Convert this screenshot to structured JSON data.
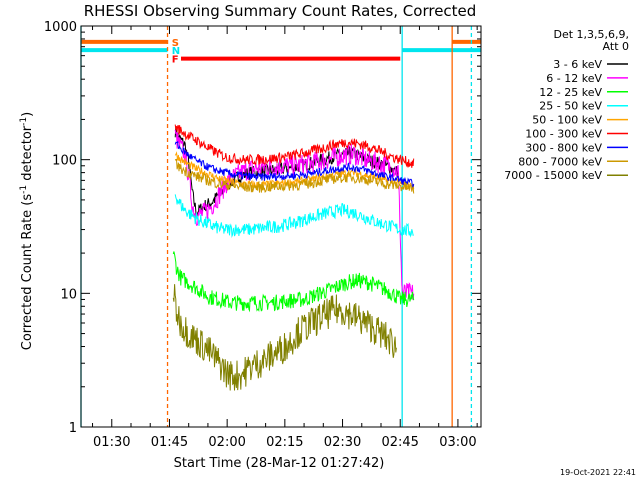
{
  "chart_data": {
    "type": "line",
    "title": "RHESSI Observing Summary Count Rates, Corrected",
    "xlabel": "Start Time (28-Mar-12 01:27:42)",
    "ylabel": "Corrected Count Rate (s",
    "ylabel_sup1": "-1",
    "ylabel_mid": " detector",
    "ylabel_sup2": "-1",
    "ylabel_end": ")",
    "yscale": "log",
    "ylim": [
      1,
      1000
    ],
    "xlim_minutes": [
      82,
      186
    ],
    "x_unit": "minutes after 00:00 UT",
    "x_ticks": [
      {
        "value": 90,
        "label": "01:30"
      },
      {
        "value": 105,
        "label": "01:45"
      },
      {
        "value": 120,
        "label": "02:00"
      },
      {
        "value": 135,
        "label": "02:15"
      },
      {
        "value": 150,
        "label": "02:30"
      },
      {
        "value": 165,
        "label": "02:45"
      },
      {
        "value": 180,
        "label": "03:00"
      }
    ],
    "y_ticks": [
      {
        "value": 1,
        "label": "1"
      },
      {
        "value": 10,
        "label": "10"
      },
      {
        "value": 100,
        "label": "100"
      },
      {
        "value": 1000,
        "label": "1000"
      }
    ],
    "legend_header": [
      "Det 1,3,5,6,9,",
      "Att 0"
    ],
    "series": [
      {
        "name": "3 - 6 keV",
        "color": "#000000",
        "x": [
          106.5,
          107.5,
          109,
          110,
          111,
          112,
          114,
          116,
          118,
          120,
          123,
          126,
          130,
          134,
          138,
          142,
          146,
          150,
          153,
          156,
          159,
          162,
          164.5
        ],
        "values": [
          165,
          145,
          130,
          95,
          55,
          40,
          45,
          48,
          55,
          65,
          75,
          80,
          82,
          85,
          88,
          95,
          102,
          110,
          112,
          100,
          95,
          88,
          80
        ]
      },
      {
        "name": "6 - 12 keV",
        "color": "#ff00ff",
        "x": [
          106.5,
          107.5,
          109,
          110,
          111,
          112,
          114,
          116,
          118,
          120,
          123,
          126,
          130,
          134,
          138,
          142,
          146,
          150,
          153,
          156,
          159,
          162,
          164.5,
          165.5,
          168.5
        ],
        "values": [
          150,
          130,
          110,
          75,
          45,
          38,
          40,
          45,
          55,
          68,
          78,
          85,
          88,
          90,
          90,
          95,
          100,
          108,
          110,
          100,
          95,
          90,
          82,
          10,
          10
        ]
      },
      {
        "name": "12 - 25 keV",
        "color": "#00ff00",
        "x": [
          106,
          107,
          108,
          110,
          112,
          115,
          118,
          121,
          124,
          128,
          132,
          136,
          140,
          144,
          148,
          151,
          154,
          157,
          160,
          163,
          165,
          167,
          168.5
        ],
        "values": [
          20,
          15,
          13,
          12,
          11,
          9.5,
          9,
          8.5,
          8.5,
          8.5,
          8.5,
          8.8,
          9,
          10,
          11,
          12,
          12.5,
          12,
          11,
          10,
          9,
          9,
          9
        ]
      },
      {
        "name": "25 - 50 keV",
        "color": "#00ffff",
        "x": [
          106.5,
          107.5,
          109,
          111,
          113,
          116,
          119,
          122,
          126,
          130,
          134,
          138,
          142,
          146,
          150,
          153,
          156,
          159,
          162,
          165,
          168.5
        ],
        "values": [
          55,
          48,
          42,
          38,
          35,
          32,
          30,
          30,
          30,
          31,
          32,
          34,
          37,
          40,
          42,
          40,
          37,
          34,
          32,
          30,
          29
        ]
      },
      {
        "name": "50 - 100 keV",
        "color": "#ffa500",
        "x": [
          106.5,
          108,
          110,
          112,
          115,
          118,
          121,
          125,
          129,
          133,
          137,
          141,
          145,
          149,
          152,
          155,
          158,
          161,
          164,
          166.5,
          168.5
        ],
        "values": [
          110,
          100,
          92,
          85,
          78,
          72,
          68,
          65,
          65,
          66,
          68,
          70,
          74,
          78,
          80,
          78,
          74,
          70,
          67,
          65,
          62
        ]
      },
      {
        "name": "100 - 300 keV",
        "color": "#ff0000",
        "x": [
          106.5,
          108,
          110,
          112,
          114,
          116,
          118,
          120,
          124,
          128,
          132,
          136,
          140,
          144,
          148,
          151,
          154,
          157,
          160,
          163,
          166,
          168.5
        ],
        "values": [
          175,
          165,
          150,
          140,
          128,
          118,
          110,
          104,
          100,
          100,
          102,
          106,
          112,
          120,
          130,
          135,
          132,
          125,
          115,
          105,
          98,
          93
        ]
      },
      {
        "name": "300 - 800 keV",
        "color": "#0000ff",
        "x": [
          106.5,
          108,
          110,
          112,
          115,
          118,
          121,
          125,
          129,
          133,
          137,
          141,
          145,
          149,
          152,
          155,
          158,
          161,
          164,
          166.5,
          168.5
        ],
        "values": [
          135,
          120,
          108,
          98,
          88,
          82,
          78,
          75,
          74,
          75,
          76,
          78,
          82,
          86,
          88,
          85,
          80,
          75,
          72,
          68,
          66
        ]
      },
      {
        "name": "800 - 7000 keV",
        "color": "#cc9900",
        "x": [
          106.5,
          108,
          110,
          112,
          115,
          118,
          121,
          125,
          129,
          133,
          137,
          141,
          145,
          149,
          152,
          155,
          158,
          161,
          164,
          166.5,
          168.5
        ],
        "values": [
          95,
          85,
          80,
          75,
          70,
          66,
          64,
          62,
          62,
          63,
          64,
          66,
          70,
          73,
          74,
          72,
          69,
          66,
          64,
          62,
          60
        ]
      },
      {
        "name": "7000 - 15000 keV",
        "color": "#808000",
        "x": [
          106,
          107,
          108,
          110,
          112,
          114,
          116,
          118,
          120,
          122,
          124,
          126,
          128,
          130,
          132,
          134,
          136,
          138,
          140,
          142,
          144,
          146,
          148,
          150,
          152,
          154,
          156,
          158,
          160,
          162,
          164
        ],
        "values": [
          10,
          7,
          6,
          5,
          4.5,
          4,
          3.5,
          3,
          2.5,
          2.4,
          2.5,
          2.8,
          3,
          3.2,
          3.5,
          3.8,
          4.2,
          5,
          5.5,
          6,
          6.5,
          7,
          7.5,
          7.5,
          7,
          6.5,
          6,
          5.5,
          5,
          4.5,
          4
        ]
      }
    ],
    "flag_bars": [
      {
        "label": "S",
        "color": "#ff6600",
        "x": [
          82,
          104.5
        ],
        "x2": [
          178.5,
          186
        ],
        "value": 760
      },
      {
        "label": "N",
        "color": "#00e5ee",
        "x": [
          82,
          104.5
        ],
        "x2": [
          165.5,
          186
        ],
        "value": 660
      },
      {
        "label": "F",
        "color": "#ff0000",
        "x": [
          108,
          165
        ],
        "value": 570
      }
    ],
    "vertical_markers": [
      {
        "x": 82,
        "color": "#00e5ee",
        "style": "solid"
      },
      {
        "x": 104.5,
        "color": "#ff6600",
        "style": "dashed"
      },
      {
        "x": 165.5,
        "color": "#00e5ee",
        "style": "solid"
      },
      {
        "x": 178.5,
        "color": "#ff6600",
        "style": "solid"
      },
      {
        "x": 183.5,
        "color": "#00e5ee",
        "style": "dashed"
      }
    ],
    "timestamp": "19-Oct-2021 22:41"
  }
}
